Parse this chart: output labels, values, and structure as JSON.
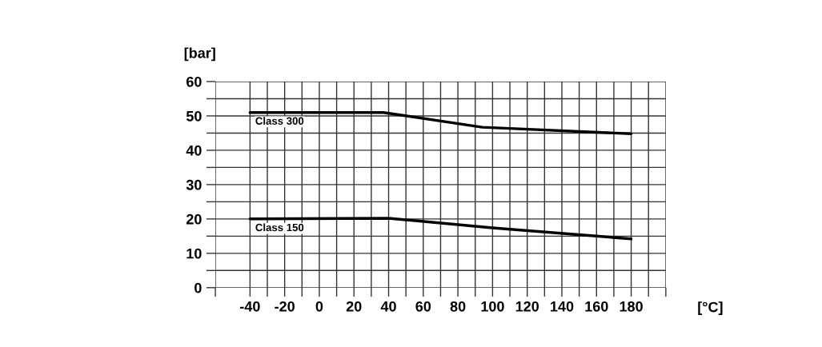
{
  "chart_data": {
    "type": "line",
    "ylabel": "[bar]",
    "xlabel": "[°C]",
    "x": [
      -40,
      37,
      94,
      180
    ],
    "series": [
      {
        "name": "Class 300",
        "color": "#000000",
        "values": [
          51,
          51,
          46.7,
          44.8
        ]
      },
      {
        "name": "Class 150",
        "color": "#000000",
        "x": [
          -40,
          40,
          100,
          180
        ],
        "values": [
          20,
          20.2,
          17.4,
          14.2
        ]
      }
    ],
    "xlim": [
      -60,
      200
    ],
    "xticks": [
      {
        "value": -60,
        "label": null
      },
      -40,
      {
        "value": -30,
        "label": null
      },
      -20,
      {
        "value": -10,
        "label": null
      },
      0,
      {
        "value": 10,
        "label": null
      },
      20,
      {
        "value": 30,
        "label": null
      },
      40,
      {
        "value": 50,
        "label": null
      },
      60,
      {
        "value": 70,
        "label": null
      },
      80,
      {
        "value": 90,
        "label": null
      },
      100,
      {
        "value": 110,
        "label": null
      },
      120,
      {
        "value": 130,
        "label": null
      },
      140,
      {
        "value": 150,
        "label": null
      },
      160,
      {
        "value": 170,
        "label": null
      },
      180,
      {
        "value": 190,
        "label": null
      },
      {
        "value": 200,
        "label": null
      }
    ],
    "ylim": [
      0,
      60
    ],
    "yticks": [
      0,
      {
        "value": 5,
        "label": null
      },
      10,
      {
        "value": 15,
        "label": null
      },
      20,
      {
        "value": 25,
        "label": null
      },
      30,
      {
        "value": 35,
        "label": null
      },
      40,
      {
        "value": 45,
        "label": null
      },
      50,
      {
        "value": 55,
        "label": null
      },
      60
    ],
    "grid": true,
    "legend": false,
    "marker": "none",
    "line_style": "solid"
  }
}
